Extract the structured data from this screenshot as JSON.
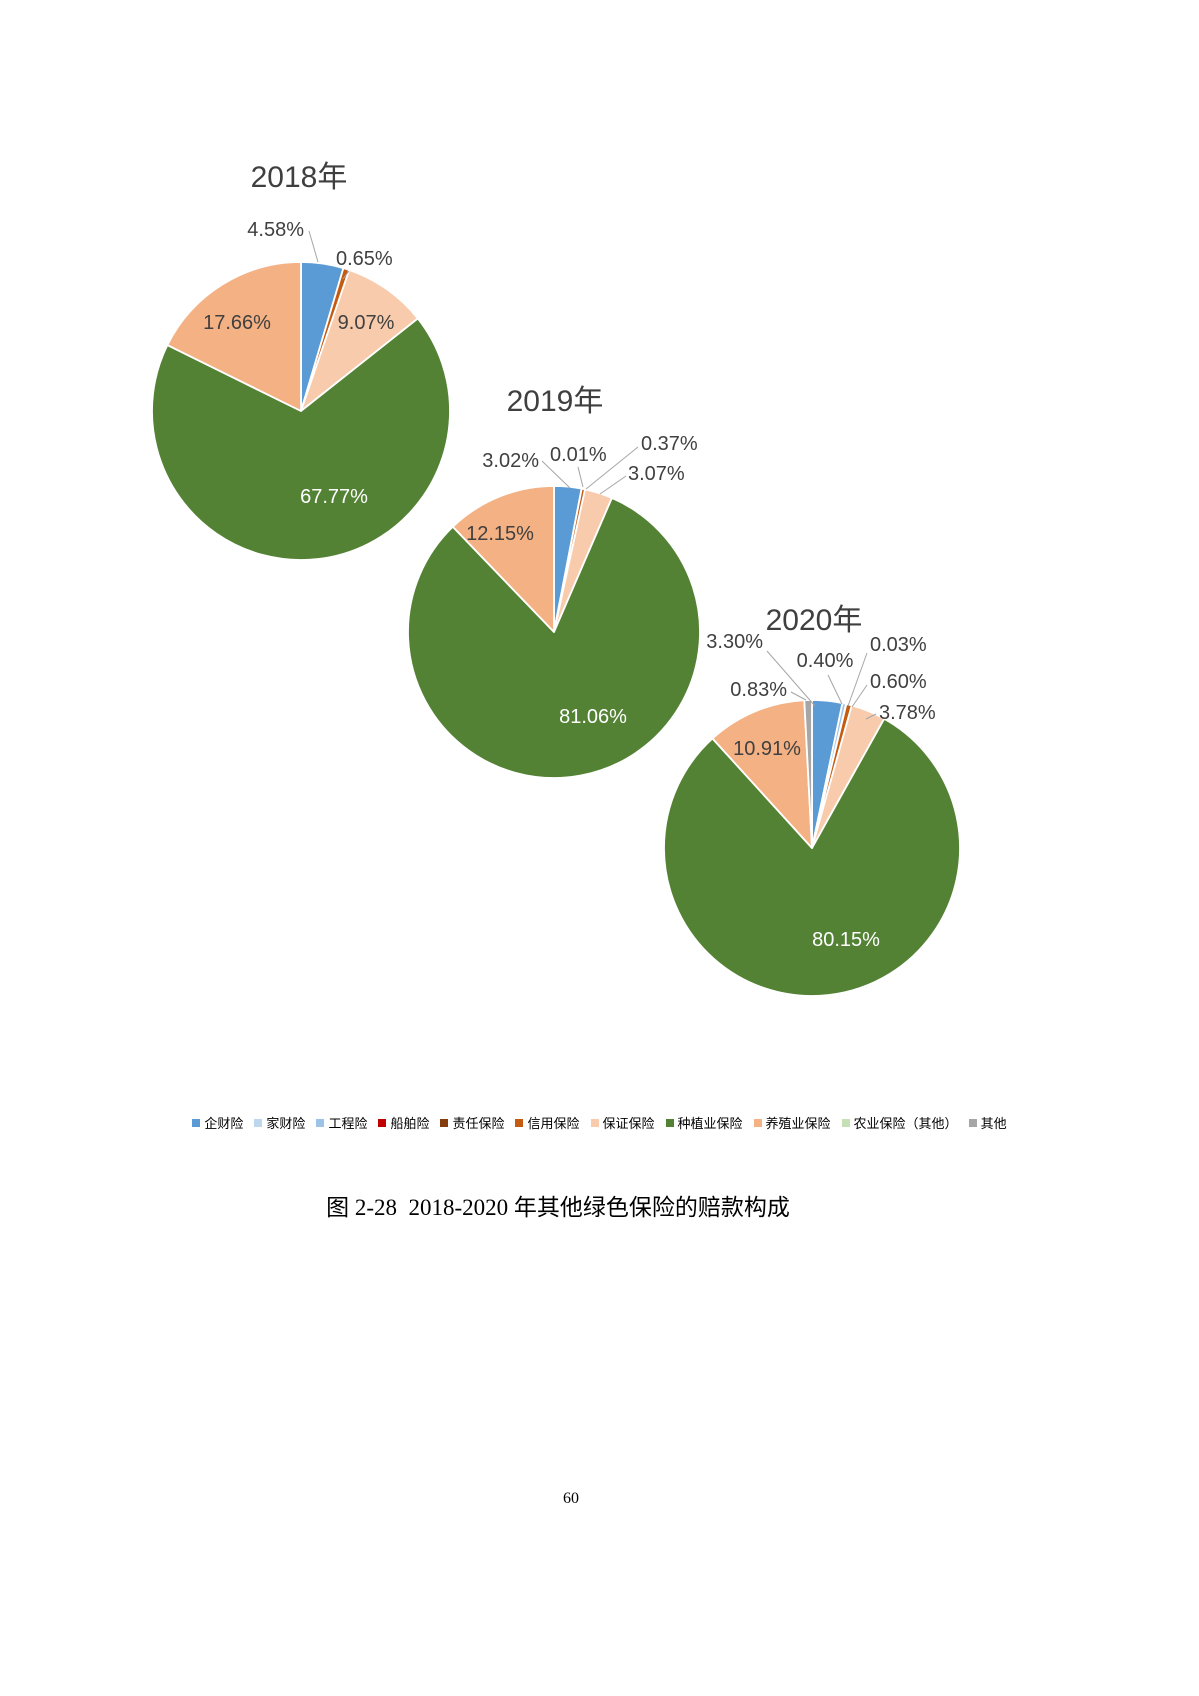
{
  "figure": {
    "caption": "图 2-28  2018-2020 年其他绿色保险的赔款构成",
    "page_number": "60"
  },
  "legend": {
    "items": [
      {
        "label": "企财险",
        "color": "#5B9BD5"
      },
      {
        "label": "家财险",
        "color": "#BDD7EE"
      },
      {
        "label": "工程险",
        "color": "#9DC3E6"
      },
      {
        "label": "船舶险",
        "color": "#C00000"
      },
      {
        "label": "责任保险",
        "color": "#843C0C"
      },
      {
        "label": "信用保险",
        "color": "#C55A11"
      },
      {
        "label": "保证保险",
        "color": "#F8CBAD"
      },
      {
        "label": "种植业保险",
        "color": "#548235"
      },
      {
        "label": "养殖业保险",
        "color": "#F4B183"
      },
      {
        "label": "农业保险（其他）",
        "color": "#C5E0B4"
      },
      {
        "label": "其他",
        "color": "#A6A6A6"
      }
    ]
  },
  "chart_data": [
    {
      "type": "pie",
      "title": "2018年",
      "unit": "%",
      "slices": [
        {
          "category": "企财险",
          "value": 4.58,
          "label": "4.58%",
          "color": "#5B9BD5"
        },
        {
          "category": "信用保险",
          "value": 0.65,
          "label": "0.65%",
          "color": "#C55A11"
        },
        {
          "category": "保证保险",
          "value": 9.07,
          "label": "9.07%",
          "color": "#F8CBAD"
        },
        {
          "category": "种植业保险",
          "value": 67.77,
          "label": "67.77%",
          "color": "#548235"
        },
        {
          "category": "养殖业保险",
          "value": 17.66,
          "label": "17.66%",
          "color": "#F4B183"
        }
      ]
    },
    {
      "type": "pie",
      "title": "2019年",
      "unit": "%",
      "slices": [
        {
          "category": "企财险",
          "value": 3.02,
          "label": "3.02%",
          "color": "#5B9BD5"
        },
        {
          "category": "责任保险",
          "value": 0.01,
          "label": "0.01%",
          "color": "#843C0C"
        },
        {
          "category": "信用保险",
          "value": 0.37,
          "label": "0.37%",
          "color": "#C55A11"
        },
        {
          "category": "保证保险",
          "value": 3.07,
          "label": "3.07%",
          "color": "#F8CBAD"
        },
        {
          "category": "种植业保险",
          "value": 81.06,
          "label": "81.06%",
          "color": "#548235"
        },
        {
          "category": "养殖业保险",
          "value": 12.15,
          "label": "12.15%",
          "color": "#F4B183"
        }
      ]
    },
    {
      "type": "pie",
      "title": "2020年",
      "unit": "%",
      "slices": [
        {
          "category": "企财险",
          "value": 3.3,
          "label": "3.30%",
          "color": "#5B9BD5"
        },
        {
          "category": "工程险",
          "value": 0.4,
          "label": "0.40%",
          "color": "#9DC3E6"
        },
        {
          "category": "船舶险",
          "value": 0.03,
          "label": "0.03%",
          "color": "#C00000"
        },
        {
          "category": "信用保险",
          "value": 0.6,
          "label": "0.60%",
          "color": "#C55A11"
        },
        {
          "category": "保证保险",
          "value": 3.78,
          "label": "3.78%",
          "color": "#F8CBAD"
        },
        {
          "category": "种植业保险",
          "value": 80.15,
          "label": "80.15%",
          "color": "#548235"
        },
        {
          "category": "养殖业保险",
          "value": 10.91,
          "label": "10.91%",
          "color": "#F4B183"
        },
        {
          "category": "其他",
          "value": 0.83,
          "label": "0.83%",
          "color": "#A6A6A6"
        }
      ]
    }
  ],
  "style": {
    "leader_line_color": "#A6A6A6",
    "label_dark_color": "#404040",
    "label_light_color": "#FFFFFF",
    "slice_border_color": "#FFFFFF"
  }
}
